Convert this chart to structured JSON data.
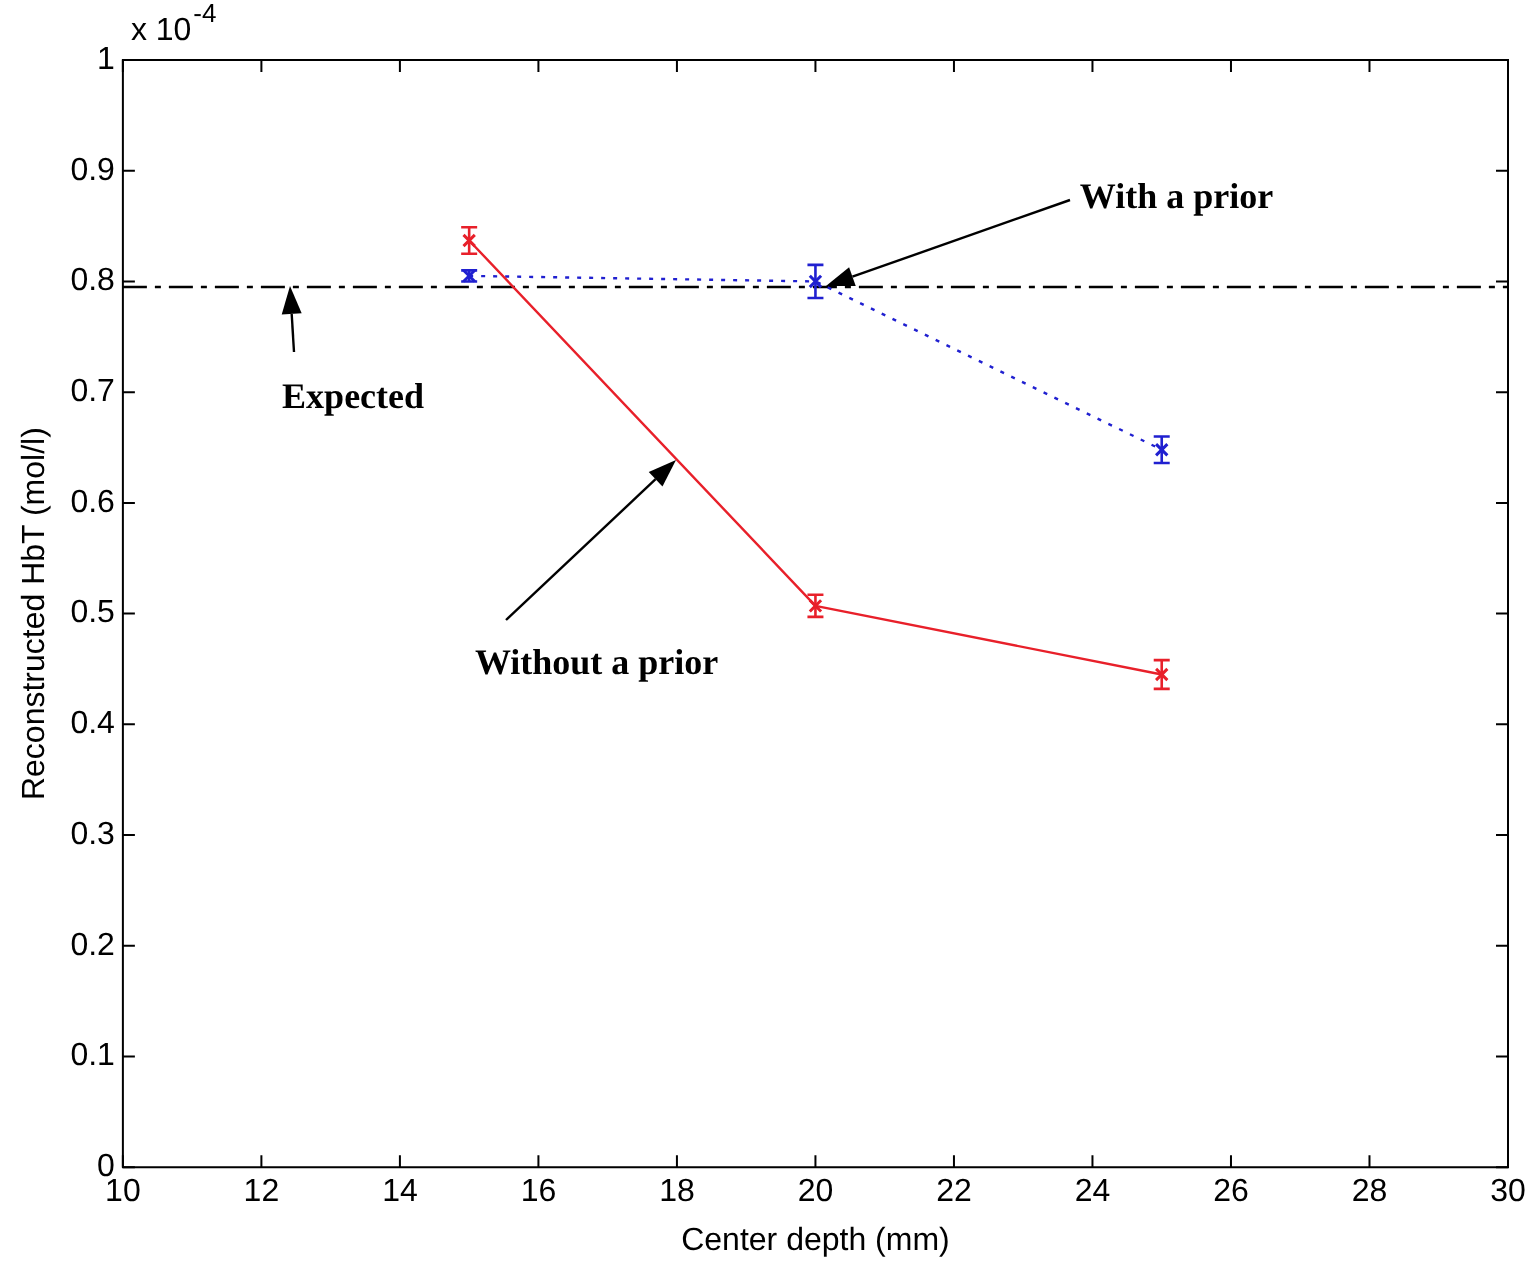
{
  "chart_data": {
    "type": "line",
    "xlabel": "Center depth (mm)",
    "ylabel": "Reconstructed HbT (mol/l)",
    "x": [
      15,
      20,
      25
    ],
    "series": [
      {
        "name": "Without a prior",
        "color": "#e8202a",
        "values": [
          0.837,
          0.507,
          0.445
        ],
        "errors": [
          0.012,
          0.01,
          0.013
        ],
        "line_style": "solid",
        "marker": "cross"
      },
      {
        "name": "With a prior",
        "color": "#2020d0",
        "values": [
          0.805,
          0.8,
          0.648
        ],
        "errors": [
          0.005,
          0.015,
          0.012
        ],
        "line_style": "dotted",
        "marker": "cross"
      }
    ],
    "xlim": [
      10,
      30
    ],
    "xticks": [
      10,
      12,
      14,
      16,
      18,
      20,
      22,
      24,
      26,
      28,
      30
    ],
    "ylim": [
      0,
      1
    ],
    "yticks": [
      0,
      0.1,
      0.2,
      0.3,
      0.4,
      0.5,
      0.6,
      0.7,
      0.8,
      0.9,
      1
    ],
    "ref_lines": [
      {
        "axis": "y",
        "value": 0.795,
        "color": "#000000",
        "line_style": "dashed"
      }
    ],
    "annotations": [
      "x 10$^{-4}$",
      {
        "text": "Expected",
        "x": 12.4,
        "y": 0.795
      }
    ],
    "grid": false,
    "legend": false
  }
}
